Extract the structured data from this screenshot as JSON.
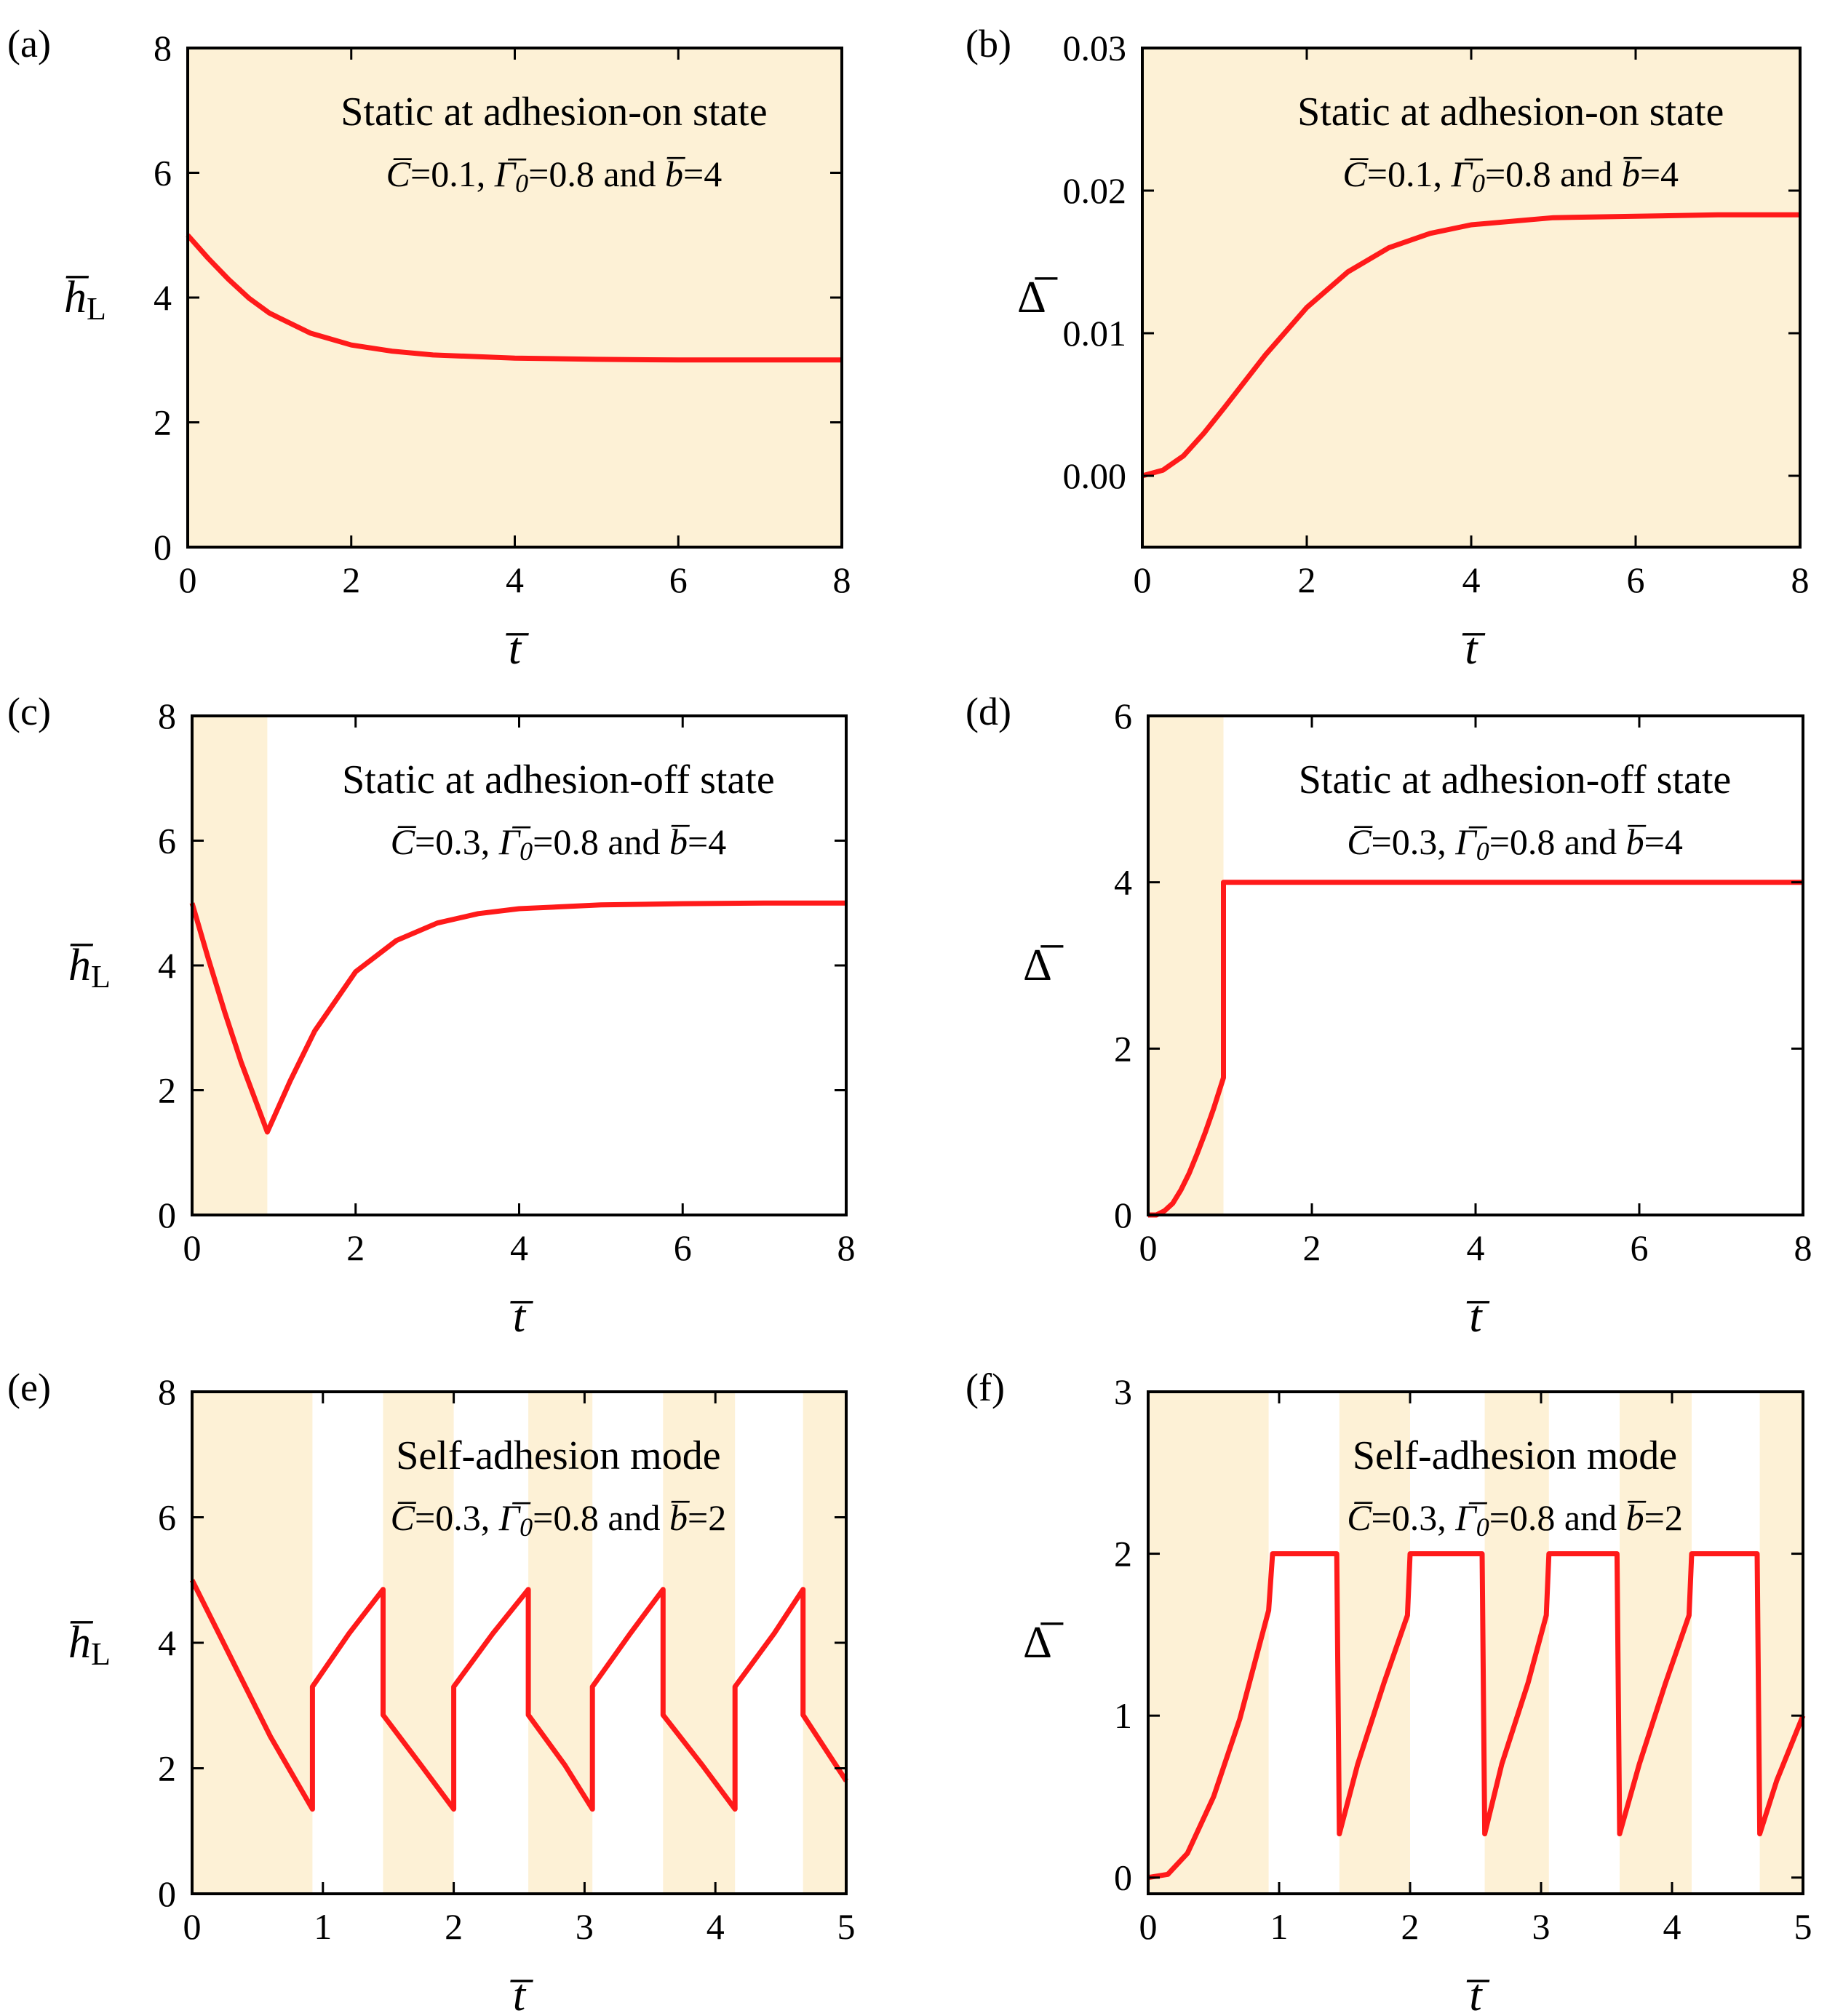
{
  "figure": {
    "colors": {
      "curve": "#ff1a1a",
      "shade": "#fdf1d6",
      "axes": "#000000",
      "background": "#ffffff"
    },
    "ylabel_h": {
      "symbol": "h",
      "subscript": "L"
    },
    "ylabel_delta": {
      "symbol": "Δ"
    },
    "xlabel": {
      "symbol": "t"
    }
  },
  "chart_data": [
    {
      "id": "a",
      "label": "(a)",
      "type": "line",
      "title": "Static at adhesion-on state",
      "params": {
        "C": "0.1",
        "Gamma0": "0.8",
        "b": "4",
        "and": "and"
      },
      "ylabel": "h_L",
      "xlabel": "t",
      "xlim": [
        0,
        8
      ],
      "ylim": [
        0,
        8
      ],
      "xticks": [
        0,
        2,
        4,
        6,
        8
      ],
      "yticks": [
        0,
        2,
        4,
        6,
        8
      ],
      "xticklabels": [
        "0",
        "2",
        "4",
        "6",
        "8"
      ],
      "yticklabels": [
        "0",
        "2",
        "4",
        "6",
        "8"
      ],
      "shaded_intervals": [
        [
          0,
          8
        ]
      ],
      "series": [
        {
          "name": "h_L",
          "x": [
            0,
            0.25,
            0.5,
            0.75,
            1.0,
            1.5,
            2.0,
            2.5,
            3.0,
            4.0,
            5.0,
            6.0,
            7.0,
            8.0
          ],
          "y": [
            5.0,
            4.63,
            4.29,
            3.99,
            3.75,
            3.43,
            3.24,
            3.14,
            3.08,
            3.03,
            3.01,
            3.0,
            3.0,
            3.0
          ]
        }
      ]
    },
    {
      "id": "b",
      "label": "(b)",
      "type": "line",
      "title": "Static at adhesion-on state",
      "params": {
        "C": "0.1",
        "Gamma0": "0.8",
        "b": "4",
        "and": "and"
      },
      "ylabel": "Delta",
      "xlabel": "t",
      "xlim": [
        0,
        8
      ],
      "ylim": [
        -0.005,
        0.03
      ],
      "xticks": [
        0,
        2,
        4,
        6,
        8
      ],
      "yticks": [
        0,
        0.01,
        0.02,
        0.03
      ],
      "xticklabels": [
        "0",
        "2",
        "4",
        "6",
        "8"
      ],
      "yticklabels": [
        "0.00",
        "0.01",
        "0.02",
        "0.03"
      ],
      "shaded_intervals": [
        [
          -0.1,
          8
        ]
      ],
      "series": [
        {
          "name": "Delta",
          "x": [
            0,
            0.25,
            0.5,
            0.75,
            1.0,
            1.5,
            2.0,
            2.5,
            3.0,
            3.5,
            4.0,
            5.0,
            6.0,
            7.0,
            8.0
          ],
          "y": [
            0.0,
            0.0004,
            0.0014,
            0.003,
            0.0048,
            0.0085,
            0.0118,
            0.0143,
            0.016,
            0.017,
            0.0176,
            0.0181,
            0.0182,
            0.0183,
            0.0183
          ]
        }
      ]
    },
    {
      "id": "c",
      "label": "(c)",
      "type": "line",
      "title": "Static at adhesion-off state",
      "params": {
        "C": "0.3",
        "Gamma0": "0.8",
        "b": "4",
        "and": "and"
      },
      "ylabel": "h_L",
      "xlabel": "t",
      "xlim": [
        0,
        8
      ],
      "ylim": [
        0,
        8
      ],
      "xticks": [
        0,
        2,
        4,
        6,
        8
      ],
      "yticks": [
        0,
        2,
        4,
        6,
        8
      ],
      "xticklabels": [
        "0",
        "2",
        "4",
        "6",
        "8"
      ],
      "yticklabels": [
        "0",
        "2",
        "4",
        "6",
        "8"
      ],
      "shaded_intervals": [
        [
          0,
          0.92
        ]
      ],
      "series": [
        {
          "name": "h_L",
          "x": [
            0,
            0.2,
            0.4,
            0.6,
            0.8,
            0.92,
            1.2,
            1.5,
            2.0,
            2.5,
            3.0,
            3.5,
            4.0,
            5.0,
            6.0,
            7.0,
            8.0
          ],
          "y": [
            5.0,
            4.1,
            3.25,
            2.45,
            1.75,
            1.33,
            2.15,
            2.95,
            3.9,
            4.4,
            4.68,
            4.83,
            4.91,
            4.97,
            4.99,
            5.0,
            5.0
          ]
        }
      ]
    },
    {
      "id": "d",
      "label": "(d)",
      "type": "line",
      "title": "Static at adhesion-off state",
      "params": {
        "C": "0.3",
        "Gamma0": "0.8",
        "b": "4",
        "and": "and"
      },
      "ylabel": "Delta",
      "xlabel": "t",
      "xlim": [
        0,
        8
      ],
      "ylim": [
        0,
        6
      ],
      "xticks": [
        0,
        2,
        4,
        6,
        8
      ],
      "yticks": [
        0,
        2,
        4,
        6
      ],
      "xticklabels": [
        "0",
        "2",
        "4",
        "6",
        "8"
      ],
      "yticklabels": [
        "0",
        "2",
        "4",
        "6"
      ],
      "shaded_intervals": [
        [
          0,
          0.92
        ]
      ],
      "series": [
        {
          "name": "Delta",
          "x": [
            0,
            0.1,
            0.2,
            0.3,
            0.4,
            0.5,
            0.6,
            0.7,
            0.8,
            0.92,
            0.92,
            8.0
          ],
          "y": [
            0.0,
            0.0,
            0.05,
            0.14,
            0.3,
            0.5,
            0.74,
            1.0,
            1.28,
            1.65,
            4.0,
            4.0
          ]
        }
      ]
    },
    {
      "id": "e",
      "label": "(e)",
      "type": "line",
      "title": "Self-adhesion mode",
      "params": {
        "C": "0.3",
        "Gamma0": "0.8",
        "b": "2",
        "and": "and"
      },
      "ylabel": "h_L",
      "xlabel": "t",
      "xlim": [
        0,
        5
      ],
      "ylim": [
        0,
        8
      ],
      "xticks": [
        0,
        1,
        2,
        3,
        4,
        5
      ],
      "yticks": [
        0,
        2,
        4,
        6,
        8
      ],
      "xticklabels": [
        "0",
        "1",
        "2",
        "3",
        "4",
        "5"
      ],
      "yticklabels": [
        "0",
        "2",
        "4",
        "6",
        "8"
      ],
      "shaded_intervals": [
        [
          0,
          0.92
        ],
        [
          1.46,
          2.0
        ],
        [
          2.57,
          3.06
        ],
        [
          3.6,
          4.15
        ],
        [
          4.67,
          5.0
        ]
      ],
      "series": [
        {
          "name": "h_L",
          "x": [
            0,
            0.3,
            0.6,
            0.92,
            0.92,
            1.2,
            1.46,
            1.46,
            1.75,
            2.0,
            2.0,
            2.3,
            2.57,
            2.57,
            2.85,
            3.06,
            3.06,
            3.35,
            3.6,
            3.6,
            3.9,
            4.15,
            4.15,
            4.45,
            4.67,
            4.67,
            5.0
          ],
          "y": [
            5.0,
            3.75,
            2.5,
            1.35,
            3.3,
            4.15,
            4.85,
            2.85,
            2.05,
            1.35,
            3.3,
            4.15,
            4.85,
            2.85,
            2.05,
            1.35,
            3.3,
            4.15,
            4.85,
            2.85,
            2.05,
            1.35,
            3.3,
            4.15,
            4.85,
            2.85,
            1.8
          ]
        }
      ]
    },
    {
      "id": "f",
      "label": "(f)",
      "type": "line",
      "title": "Self-adhesion mode",
      "params": {
        "C": "0.3",
        "Gamma0": "0.8",
        "b": "2",
        "and": "and"
      },
      "ylabel": "Delta",
      "xlabel": "t",
      "xlim": [
        0,
        5
      ],
      "ylim": [
        -0.1,
        3
      ],
      "xticks": [
        0,
        1,
        2,
        3,
        4,
        5
      ],
      "yticks": [
        0,
        1,
        2,
        3
      ],
      "xticklabels": [
        "0",
        "1",
        "2",
        "3",
        "4",
        "5"
      ],
      "yticklabels": [
        "0",
        "1",
        "2",
        "3"
      ],
      "shaded_intervals": [
        [
          0,
          0.92
        ],
        [
          1.46,
          2.0
        ],
        [
          2.57,
          3.06
        ],
        [
          3.6,
          4.15
        ],
        [
          4.67,
          5.0
        ]
      ],
      "series": [
        {
          "name": "Delta",
          "x": [
            0,
            0.15,
            0.3,
            0.5,
            0.7,
            0.92,
            0.95,
            1.44,
            1.46,
            1.6,
            1.8,
            1.98,
            2.0,
            2.55,
            2.57,
            2.7,
            2.9,
            3.04,
            3.06,
            3.58,
            3.6,
            3.75,
            3.95,
            4.13,
            4.15,
            4.65,
            4.67,
            4.8,
            5.0
          ],
          "y": [
            0.0,
            0.02,
            0.15,
            0.5,
            0.98,
            1.65,
            2.0,
            2.0,
            0.27,
            0.7,
            1.2,
            1.62,
            2.0,
            2.0,
            0.27,
            0.7,
            1.2,
            1.62,
            2.0,
            2.0,
            0.27,
            0.7,
            1.2,
            1.62,
            2.0,
            2.0,
            0.27,
            0.6,
            1.0
          ]
        }
      ]
    }
  ]
}
